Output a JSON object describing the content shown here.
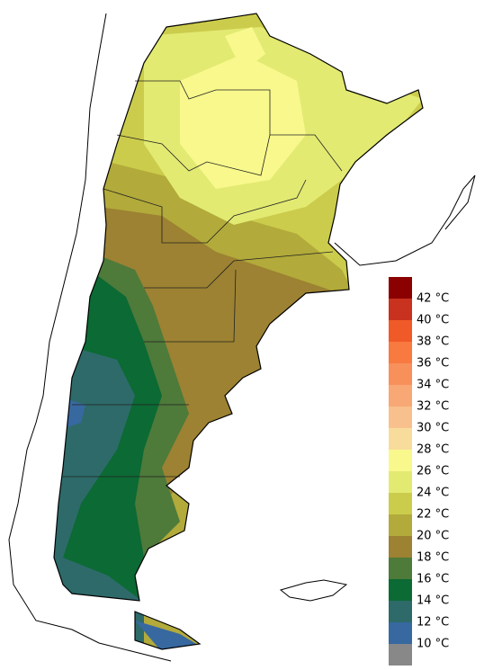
{
  "legend": {
    "swatches": [
      "#8b0000",
      "#c8321e",
      "#f05a28",
      "#f87a40",
      "#f8905c",
      "#f8a874",
      "#f8c08c",
      "#f8dc9c",
      "#f8f88c",
      "#e2ea72",
      "#cccc4c",
      "#b2aa3a",
      "#9c8232",
      "#4e7a3a",
      "#0c6a34",
      "#2e6a6a",
      "#3868a0",
      "#888888"
    ],
    "labels": [
      "42 °C",
      "40 °C",
      "38 °C",
      "36 °C",
      "34 °C",
      "32 °C",
      "30 °C",
      "28 °C",
      "26 °C",
      "24 °C",
      "22 °C",
      "20 °C",
      "18 °C",
      "16 °C",
      "14 °C",
      "12 °C",
      "10 °C"
    ]
  }
}
